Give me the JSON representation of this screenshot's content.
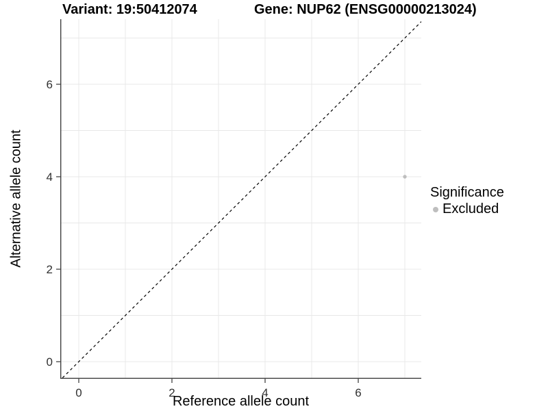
{
  "titles": {
    "variant": "Variant: 19:50412074",
    "gene": "Gene: NUP62 (ENSG00000213024)"
  },
  "legend": {
    "title": "Significance",
    "entries": [
      {
        "label": "Excluded",
        "color": "#bebebe"
      }
    ]
  },
  "chart_data": {
    "type": "scatter",
    "title": "Variant: 19:50412074 — Gene: NUP62 (ENSG00000213024)",
    "xlabel": "Reference allele count",
    "ylabel": "Alternative allele count",
    "xlim": [
      -0.4,
      7.35
    ],
    "ylim": [
      -0.37,
      7.41
    ],
    "x_major_ticks": [
      0,
      2,
      4,
      6
    ],
    "y_major_ticks": [
      0,
      2,
      4,
      6
    ],
    "x_gridlines": [
      0,
      1,
      2,
      3,
      4,
      5,
      6,
      7
    ],
    "y_gridlines": [
      0,
      1,
      2,
      3,
      4,
      5,
      6,
      7
    ],
    "grid": true,
    "legend_position": "right",
    "reference_line": {
      "slope": 1,
      "intercept": 0,
      "style": "dashed",
      "color": "#000000"
    },
    "series": [
      {
        "name": "Excluded",
        "color": "#bebebe",
        "points": [
          {
            "x": 7,
            "y": 4
          }
        ]
      }
    ],
    "colors": {
      "gridline": "#e8e8e8",
      "axis_line": "#3f3f3f",
      "tick_mark": "#333333",
      "tick_label": "#303030",
      "background": "#ffffff"
    }
  }
}
